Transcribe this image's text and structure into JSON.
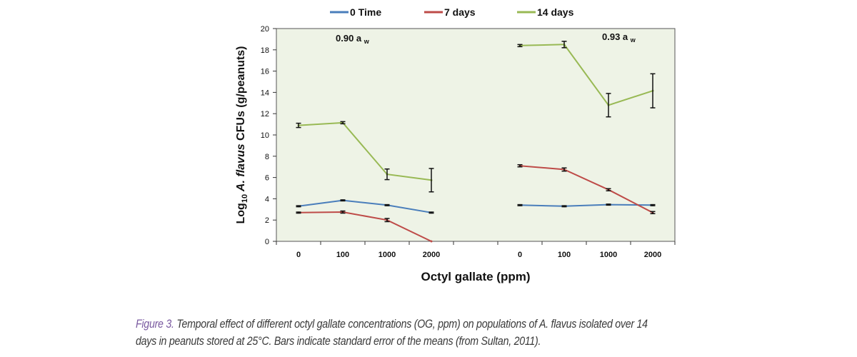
{
  "chart_data": {
    "type": "line",
    "xlabel": "Octyl gallate (ppm)",
    "ylabel_prefix": "Log",
    "ylabel_sub": "10",
    "ylabel_species": "A. flavus",
    "ylabel_suffix": "CFUs (g/peanuts)",
    "ylim": [
      0,
      20
    ],
    "yticks": [
      0,
      2,
      4,
      6,
      8,
      10,
      12,
      14,
      16,
      18,
      20
    ],
    "grid": false,
    "legend_position": "top",
    "colors": {
      "0 Time": "#4a7ebb",
      "7 days": "#be4b48",
      "14 days": "#98b954",
      "plot_background": "#eef3e6"
    },
    "panels": [
      {
        "label_main": "0.90 a",
        "label_sub": "w",
        "categories": [
          "0",
          "100",
          "1000",
          "2000"
        ],
        "series": [
          {
            "name": "0 Time",
            "values": [
              3.3,
              3.85,
              3.4,
              2.7
            ],
            "errors": [
              0.05,
              0.05,
              0.05,
              0.05
            ]
          },
          {
            "name": "7 days",
            "values": [
              2.7,
              2.75,
              2.0,
              0.0
            ],
            "errors": [
              0.05,
              0.1,
              0.15,
              0.0
            ]
          },
          {
            "name": "14 days",
            "values": [
              10.9,
              11.15,
              6.3,
              5.75
            ],
            "errors": [
              0.2,
              0.1,
              0.5,
              1.1
            ]
          }
        ]
      },
      {
        "label_main": "0.93 a",
        "label_sub": "w",
        "categories": [
          "0",
          "100",
          "1000",
          "2000"
        ],
        "series": [
          {
            "name": "0 Time",
            "values": [
              3.4,
              3.3,
              3.45,
              3.4
            ],
            "errors": [
              0.05,
              0.05,
              0.05,
              0.05
            ]
          },
          {
            "name": "7 days",
            "values": [
              7.1,
              6.75,
              4.85,
              2.7
            ],
            "errors": [
              0.1,
              0.15,
              0.1,
              0.1
            ]
          },
          {
            "name": "14 days",
            "values": [
              18.4,
              18.5,
              12.8,
              14.15
            ],
            "errors": [
              0.1,
              0.3,
              1.1,
              1.6
            ]
          }
        ]
      }
    ]
  },
  "caption": {
    "figure_label": "Figure 3.",
    "text": " Temporal effect of different octyl gallate concentrations (OG, ppm) on populations of A. flavus isolated over 14 days in peanuts stored at 25°C. Bars indicate standard error of the means (from Sultan, 2011)."
  }
}
